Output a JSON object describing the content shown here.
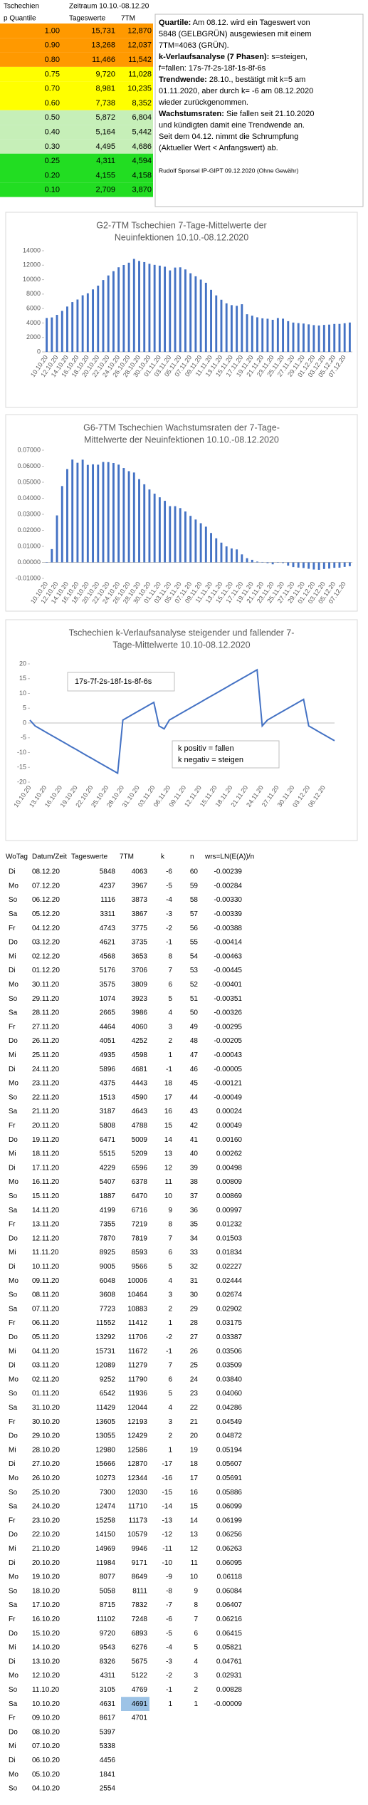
{
  "header": {
    "country": "Tschechien",
    "period": "Zeitraum 10.10.-08.12.20"
  },
  "quantiles": {
    "columns": [
      "p Quantile",
      "Tageswerte",
      "7TM"
    ],
    "rows": [
      {
        "p": "1.00",
        "daily": "15,731",
        "avg7": "12,870",
        "color": "#ff9900"
      },
      {
        "p": "0.90",
        "daily": "13,268",
        "avg7": "12,037",
        "color": "#ff9900"
      },
      {
        "p": "0.80",
        "daily": "11,466",
        "avg7": "11,542",
        "color": "#ff9900"
      },
      {
        "p": "0.75",
        "daily": "9,720",
        "avg7": "11,028",
        "color": "#ffff00"
      },
      {
        "p": "0.70",
        "daily": "8,981",
        "avg7": "10,235",
        "color": "#ffff00"
      },
      {
        "p": "0.60",
        "daily": "7,738",
        "avg7": "8,352",
        "color": "#ffff00"
      },
      {
        "p": "0.50",
        "daily": "5,872",
        "avg7": "6,804",
        "color": "#c6efb8"
      },
      {
        "p": "0.40",
        "daily": "5,164",
        "avg7": "5,442",
        "color": "#c6efb8"
      },
      {
        "p": "0.30",
        "daily": "4,495",
        "avg7": "4,686",
        "color": "#c6efb8"
      },
      {
        "p": "0.25",
        "daily": "4,311",
        "avg7": "4,594",
        "color": "#22dd22"
      },
      {
        "p": "0.20",
        "daily": "4,155",
        "avg7": "4,158",
        "color": "#22dd22"
      },
      {
        "p": "0.10",
        "daily": "2,709",
        "avg7": "3,870",
        "color": "#22dd22"
      }
    ]
  },
  "note": {
    "lines": [
      {
        "bold": "Quartile:",
        "text": " Am 08.12. wird ein Tageswert von"
      },
      {
        "text": "5848 (GELBGRÜN) ausgewiesen mit einem"
      },
      {
        "text": "7TM=4063 (GRÜN)."
      },
      {
        "bold": "k-Verlaufsanalyse (7 Phasen):",
        "text": " s=steigen,"
      },
      {
        "text": "f=fallen: 17s-7f-2s-18f-1s-8f-6s"
      },
      {
        "bold": "Trendwende:",
        "text": " 28.10., bestätigt mit k=5 am"
      },
      {
        "text": "01.11.2020, aber durch k= -6 am 08.12.2020"
      },
      {
        "text": "wieder zurückgenommen."
      },
      {
        "bold": "Wachstumsraten:",
        "text": " Sie fallen seit 21.10.2020"
      },
      {
        "text": "und kündigten damit eine Trendwende an."
      },
      {
        "text": "Seit dem 04.12. nimmt die Schrumpfung"
      },
      {
        "text": "(Aktueller Wert < Anfangswert) ab."
      }
    ],
    "signature": "Rudolf Sponsel IP-GIPT 09.12.2020 (Ohne Gewähr)"
  },
  "charts": [
    {
      "type": "bar",
      "title": [
        "G2-7TM Tschechien 7-Tage-Mittelwerte  der",
        "Neuinfektionen 10.10.-08.12.2020"
      ],
      "color": "#4472c4",
      "ylim": [
        0,
        14000
      ],
      "yticks": [
        0,
        2000,
        4000,
        6000,
        8000,
        10000,
        12000,
        14000
      ]
    },
    {
      "type": "bar",
      "title": [
        "G6-7TM Tschechien Wachstumsraten der 7-Tage-",
        "Mittelwerte der Neuinfektionen 10.10.-08.12.2020"
      ],
      "color": "#4472c4",
      "ylim": [
        -0.01,
        0.07
      ],
      "yticks": [
        {
          "value": -0.01,
          "label": "-0.01000"
        },
        {
          "value": 0,
          "label": "0.00000"
        },
        {
          "value": 0.01,
          "label": "0.01000"
        },
        {
          "value": 0.02,
          "label": "0.02000"
        },
        {
          "value": 0.03,
          "label": "0.03000"
        },
        {
          "value": 0.04,
          "label": "0.04000"
        },
        {
          "value": 0.05,
          "label": "0.05000"
        },
        {
          "value": 0.06,
          "label": "0.06000"
        },
        {
          "value": 0.07,
          "label": "0.07000"
        }
      ]
    },
    {
      "type": "line",
      "title": [
        "Tschechien k-Verlaufsanalyse steigender und fallender 7-",
        "Tage-Mittelwerte 10.10-08.12.2020"
      ],
      "color": "#4472c4",
      "ylim": [
        -20,
        20
      ],
      "yticks": [
        -20,
        -15,
        -10,
        -5,
        0,
        5,
        10,
        15,
        20
      ],
      "annotation": "17s-7f-2s-18f-1s-8f-6s",
      "legend_text": [
        "k positiv = fallen",
        "k negativ = steigen"
      ]
    }
  ],
  "table": {
    "columns": [
      "WoTag",
      "Datum/Zeit",
      "Tageswerte",
      "7TM",
      "k",
      "n",
      "wrs=LN(E(A))/n"
    ],
    "rows": [
      [
        "Di",
        "08.12.20",
        "5848",
        "4063",
        "-6",
        "60",
        "-0.00239"
      ],
      [
        "Mo",
        "07.12.20",
        "4237",
        "3967",
        "-5",
        "59",
        "-0.00284"
      ],
      [
        "So",
        "06.12.20",
        "1116",
        "3873",
        "-4",
        "58",
        "-0.00330"
      ],
      [
        "Sa",
        "05.12.20",
        "3311",
        "3867",
        "-3",
        "57",
        "-0.00339"
      ],
      [
        "Fr",
        "04.12.20",
        "4743",
        "3775",
        "-2",
        "56",
        "-0.00388"
      ],
      [
        "Do",
        "03.12.20",
        "4621",
        "3735",
        "-1",
        "55",
        "-0.00414"
      ],
      [
        "Mi",
        "02.12.20",
        "4568",
        "3653",
        "8",
        "54",
        "-0.00463"
      ],
      [
        "Di",
        "01.12.20",
        "5176",
        "3706",
        "7",
        "53",
        "-0.00445"
      ],
      [
        "Mo",
        "30.11.20",
        "3575",
        "3809",
        "6",
        "52",
        "-0.00401"
      ],
      [
        "So",
        "29.11.20",
        "1074",
        "3923",
        "5",
        "51",
        "-0.00351"
      ],
      [
        "Sa",
        "28.11.20",
        "2665",
        "3986",
        "4",
        "50",
        "-0.00326"
      ],
      [
        "Fr",
        "27.11.20",
        "4464",
        "4060",
        "3",
        "49",
        "-0.00295"
      ],
      [
        "Do",
        "26.11.20",
        "4051",
        "4252",
        "2",
        "48",
        "-0.00205"
      ],
      [
        "Mi",
        "25.11.20",
        "4935",
        "4598",
        "1",
        "47",
        "-0.00043"
      ],
      [
        "Di",
        "24.11.20",
        "5896",
        "4681",
        "-1",
        "46",
        "-0.00005"
      ],
      [
        "Mo",
        "23.11.20",
        "4375",
        "4443",
        "18",
        "45",
        "-0.00121"
      ],
      [
        "So",
        "22.11.20",
        "1513",
        "4590",
        "17",
        "44",
        "-0.00049"
      ],
      [
        "Sa",
        "21.11.20",
        "3187",
        "4643",
        "16",
        "43",
        "0.00024"
      ],
      [
        "Fr",
        "20.11.20",
        "5808",
        "4788",
        "15",
        "42",
        "0.00049"
      ],
      [
        "Do",
        "19.11.20",
        "6471",
        "5009",
        "14",
        "41",
        "0.00160"
      ],
      [
        "Mi",
        "18.11.20",
        "5515",
        "5209",
        "13",
        "40",
        "0.00262"
      ],
      [
        "Di",
        "17.11.20",
        "4229",
        "6596",
        "12",
        "39",
        "0.00498"
      ],
      [
        "Mo",
        "16.11.20",
        "5407",
        "6378",
        "11",
        "38",
        "0.00809"
      ],
      [
        "So",
        "15.11.20",
        "1887",
        "6470",
        "10",
        "37",
        "0.00869"
      ],
      [
        "Sa",
        "14.11.20",
        "4199",
        "6716",
        "9",
        "36",
        "0.00997"
      ],
      [
        "Fr",
        "13.11.20",
        "7355",
        "7219",
        "8",
        "35",
        "0.01232"
      ],
      [
        "Do",
        "12.11.20",
        "7870",
        "7819",
        "7",
        "34",
        "0.01503"
      ],
      [
        "Mi",
        "11.11.20",
        "8925",
        "8593",
        "6",
        "33",
        "0.01834"
      ],
      [
        "Di",
        "10.11.20",
        "9005",
        "9566",
        "5",
        "32",
        "0.02227"
      ],
      [
        "Mo",
        "09.11.20",
        "6048",
        "10006",
        "4",
        "31",
        "0.02444"
      ],
      [
        "So",
        "08.11.20",
        "3608",
        "10464",
        "3",
        "30",
        "0.02674"
      ],
      [
        "Sa",
        "07.11.20",
        "7723",
        "10883",
        "2",
        "29",
        "0.02902"
      ],
      [
        "Fr",
        "06.11.20",
        "11552",
        "11412",
        "1",
        "28",
        "0.03175"
      ],
      [
        "Do",
        "05.11.20",
        "13292",
        "11706",
        "-2",
        "27",
        "0.03387"
      ],
      [
        "Mi",
        "04.11.20",
        "15731",
        "11672",
        "-1",
        "26",
        "0.03506"
      ],
      [
        "Di",
        "03.11.20",
        "12089",
        "11279",
        "7",
        "25",
        "0.03509"
      ],
      [
        "Mo",
        "02.11.20",
        "9252",
        "11790",
        "6",
        "24",
        "0.03840"
      ],
      [
        "So",
        "01.11.20",
        "6542",
        "11936",
        "5",
        "23",
        "0.04060"
      ],
      [
        "Sa",
        "31.10.20",
        "11429",
        "12044",
        "4",
        "22",
        "0.04286"
      ],
      [
        "Fr",
        "30.10.20",
        "13605",
        "12193",
        "3",
        "21",
        "0.04549"
      ],
      [
        "Do",
        "29.10.20",
        "13055",
        "12429",
        "2",
        "20",
        "0.04872"
      ],
      [
        "Mi",
        "28.10.20",
        "12980",
        "12586",
        "1",
        "19",
        "0.05194"
      ],
      [
        "Di",
        "27.10.20",
        "15666",
        "12870",
        "-17",
        "18",
        "0.05607"
      ],
      [
        "Mo",
        "26.10.20",
        "10273",
        "12344",
        "-16",
        "17",
        "0.05691"
      ],
      [
        "So",
        "25.10.20",
        "7300",
        "12030",
        "-15",
        "16",
        "0.05886"
      ],
      [
        "Sa",
        "24.10.20",
        "12474",
        "11710",
        "-14",
        "15",
        "0.06099"
      ],
      [
        "Fr",
        "23.10.20",
        "15258",
        "11173",
        "-13",
        "14",
        "0.06199"
      ],
      [
        "Do",
        "22.10.20",
        "14150",
        "10579",
        "-12",
        "13",
        "0.06256"
      ],
      [
        "Mi",
        "21.10.20",
        "14969",
        "9946",
        "-11",
        "12",
        "0.06263"
      ],
      [
        "Di",
        "20.10.20",
        "11984",
        "9171",
        "-10",
        "11",
        "0.06095"
      ],
      [
        "Mo",
        "19.10.20",
        "8077",
        "8649",
        "-9",
        "10",
        "0.06118"
      ],
      [
        "So",
        "18.10.20",
        "5058",
        "8111",
        "-8",
        "9",
        "0.06084"
      ],
      [
        "Sa",
        "17.10.20",
        "8715",
        "7832",
        "-7",
        "8",
        "0.06407"
      ],
      [
        "Fr",
        "16.10.20",
        "11102",
        "7248",
        "-6",
        "7",
        "0.06216"
      ],
      [
        "Do",
        "15.10.20",
        "9720",
        "6893",
        "-5",
        "6",
        "0.06415"
      ],
      [
        "Mi",
        "14.10.20",
        "9543",
        "6276",
        "-4",
        "5",
        "0.05821"
      ],
      [
        "Di",
        "13.10.20",
        "8326",
        "5675",
        "-3",
        "4",
        "0.04761"
      ],
      [
        "Mo",
        "12.10.20",
        "4311",
        "5122",
        "-2",
        "3",
        "0.02931"
      ],
      [
        "So",
        "11.10.20",
        "3105",
        "4769",
        "-1",
        "2",
        "0.00828"
      ],
      [
        "Sa",
        "10.10.20",
        "4631",
        "4691",
        "1",
        "1",
        "-0.00009"
      ],
      [
        "Fr",
        "09.10.20",
        "8617",
        "4701"
      ],
      [
        "Do",
        "08.10.20",
        "5397"
      ],
      [
        "Mi",
        "07.10.20",
        "5338"
      ],
      [
        "Di",
        "06.10.20",
        "4456"
      ],
      [
        "Mo",
        "05.10.20",
        "1841"
      ],
      [
        "So",
        "04.10.20",
        "2554"
      ]
    ]
  }
}
